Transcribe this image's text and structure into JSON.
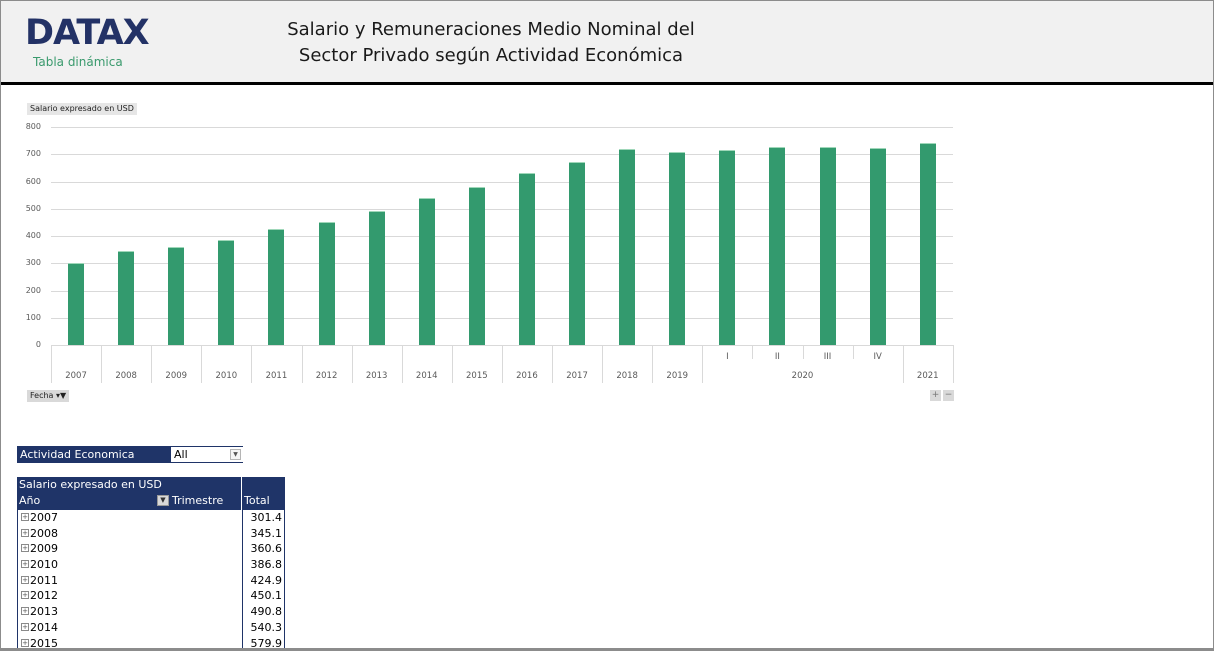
{
  "header": {
    "logo_text": "DATAX",
    "logo_subtitle": "Tabla dinámica",
    "title_line1": "Salario y Remuneraciones Medio Nominal del",
    "title_line2": "Sector Privado según Actividad Económica"
  },
  "chart": {
    "value_field_button": "Salario expresado en USD",
    "axis_field_button": "Fecha",
    "zoom_in_label": "+",
    "zoom_out_label": "−"
  },
  "chart_data": {
    "type": "bar",
    "title": "",
    "ylabel": "Salario expresado en USD",
    "xlabel": "Fecha",
    "ylim": [
      0,
      800
    ],
    "yticks": [
      0,
      100,
      200,
      300,
      400,
      500,
      600,
      700,
      800
    ],
    "grid": true,
    "legend": "none",
    "categories": [
      "2007",
      "2008",
      "2009",
      "2010",
      "2011",
      "2012",
      "2013",
      "2014",
      "2015",
      "2016",
      "2017",
      "2018",
      "2019",
      "2020 I",
      "2020 II",
      "2020 III",
      "2020 IV",
      "2021"
    ],
    "values": [
      301.4,
      345.1,
      360.6,
      386.8,
      424.9,
      450.1,
      490.8,
      540.3,
      579.9,
      631,
      670,
      720,
      710,
      717,
      725,
      728,
      722,
      740
    ],
    "color": "#339a6e"
  },
  "x_axis": {
    "years": [
      "2007",
      "2008",
      "2009",
      "2010",
      "2011",
      "2012",
      "2013",
      "2014",
      "2015",
      "2016",
      "2017",
      "2018",
      "2019",
      "2020",
      "2021"
    ],
    "quarters_2020": [
      "I",
      "II",
      "III",
      "IV"
    ]
  },
  "slicer": {
    "label": "Actividad Economica",
    "value": "All"
  },
  "pivot": {
    "value_header": "Salario expresado en USD",
    "row_header": "Año",
    "column_header": "Trimestre",
    "total_header": "Total",
    "rows": [
      {
        "year": "2007",
        "total": "301.4"
      },
      {
        "year": "2008",
        "total": "345.1"
      },
      {
        "year": "2009",
        "total": "360.6"
      },
      {
        "year": "2010",
        "total": "386.8"
      },
      {
        "year": "2011",
        "total": "424.9"
      },
      {
        "year": "2012",
        "total": "450.1"
      },
      {
        "year": "2013",
        "total": "490.8"
      },
      {
        "year": "2014",
        "total": "540.3"
      },
      {
        "year": "2015",
        "total": "579.9"
      }
    ]
  },
  "colors": {
    "brand_navy": "#233266",
    "brand_green": "#3a9a6d",
    "bar_green": "#339a6e",
    "pivot_header": "#1f3468"
  }
}
